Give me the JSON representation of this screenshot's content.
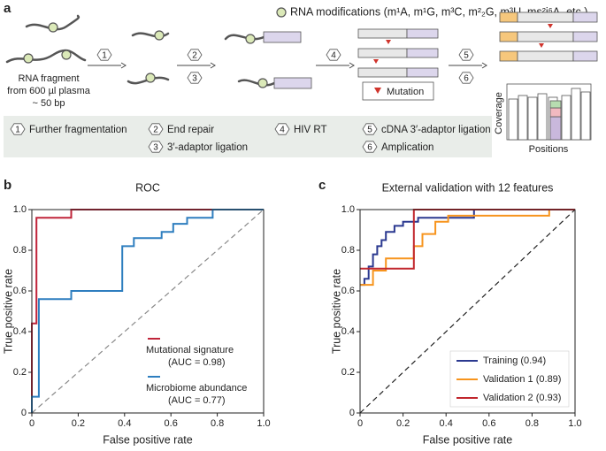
{
  "panel_a": {
    "label": "a",
    "legend": "RNA modifications (m¹A, m¹G, m³C, m²₂G, m³U, ms²i⁶A, etc.)",
    "source": [
      "RNA fragment",
      "from 600 µl plasma",
      "~ 50 bp"
    ],
    "mutation": "Mutation",
    "coverage": "Coverage",
    "positions": "Positions",
    "steps": [
      {
        "number": "1",
        "label": "Further fragmentation"
      },
      {
        "number": "2",
        "label": "End repair"
      },
      {
        "number": "3",
        "label": "3′-adaptor ligation"
      },
      {
        "number": "4",
        "label": "HIV RT"
      },
      {
        "number": "5",
        "label": "cDNA 3′-adaptor ligation"
      },
      {
        "number": "6",
        "label": "Amplication"
      }
    ]
  },
  "chart_data": [
    {
      "type": "line",
      "panel": "b",
      "title": "ROC",
      "xlabel": "False positive rate",
      "ylabel": "True positive rate",
      "xlim": [
        0,
        1
      ],
      "ylim": [
        0,
        1
      ],
      "xticks": [
        0,
        0.2,
        0.4,
        0.6,
        0.8,
        {
          "value": 1,
          "label": "1.0"
        }
      ],
      "yticks": [
        0,
        0.2,
        0.4,
        0.6,
        0.8,
        {
          "value": 1,
          "label": "1.0"
        }
      ],
      "series": [
        {
          "name": "Mutational signature",
          "auc": "(AUC = 0.98)",
          "color": "#c0243a",
          "x": [
            0,
            0,
            0.02,
            0.02,
            0.17,
            0.17,
            1
          ],
          "values": [
            0,
            0.44,
            0.44,
            0.96,
            0.96,
            1,
            1
          ]
        },
        {
          "name": "Microbiome abundance",
          "auc": "(AUC = 0.77)",
          "color": "#2e7ebf",
          "x": [
            0,
            0,
            0.03,
            0.03,
            0.17,
            0.17,
            0.39,
            0.39,
            0.44,
            0.44,
            0.56,
            0.56,
            0.61,
            0.61,
            0.67,
            0.67,
            0.78,
            0.78,
            1
          ],
          "values": [
            0,
            0.08,
            0.08,
            0.56,
            0.56,
            0.6,
            0.6,
            0.82,
            0.82,
            0.86,
            0.86,
            0.89,
            0.89,
            0.93,
            0.93,
            0.96,
            0.96,
            1,
            1
          ]
        }
      ]
    },
    {
      "type": "line",
      "panel": "c",
      "title": "External validation with 12 features",
      "xlabel": "False positive rate",
      "ylabel": "True positive rate",
      "xlim": [
        0,
        1
      ],
      "ylim": [
        0,
        1
      ],
      "xticks": [
        0,
        0.2,
        0.4,
        0.6,
        0.8,
        {
          "value": 1,
          "label": "1.0"
        }
      ],
      "yticks": [
        0,
        0.2,
        0.4,
        0.6,
        0.8,
        {
          "value": 1,
          "label": "1.0"
        }
      ],
      "series": [
        {
          "name": "Training (0.94)",
          "color": "#2b3990",
          "x": [
            0,
            0.02,
            0.02,
            0.04,
            0.04,
            0.06,
            0.06,
            0.08,
            0.08,
            0.1,
            0.1,
            0.12,
            0.12,
            0.16,
            0.16,
            0.2,
            0.2,
            0.27,
            0.27,
            0.53,
            0.53,
            1
          ],
          "values": [
            0.63,
            0.63,
            0.66,
            0.66,
            0.72,
            0.72,
            0.78,
            0.78,
            0.82,
            0.82,
            0.85,
            0.85,
            0.89,
            0.89,
            0.92,
            0.92,
            0.94,
            0.94,
            0.96,
            0.96,
            1,
            1
          ]
        },
        {
          "name": "Validation 1 (0.89)",
          "color": "#f7941d",
          "x": [
            0,
            0.06,
            0.06,
            0.12,
            0.12,
            0.25,
            0.25,
            0.29,
            0.29,
            0.35,
            0.35,
            0.41,
            0.41,
            0.88,
            0.88,
            1
          ],
          "values": [
            0.63,
            0.63,
            0.7,
            0.7,
            0.76,
            0.76,
            0.82,
            0.82,
            0.88,
            0.88,
            0.94,
            0.94,
            0.97,
            0.97,
            1,
            1
          ]
        },
        {
          "name": "Validation 2 (0.93)",
          "color": "#c1272d",
          "x": [
            0,
            0.25,
            0.25,
            1
          ],
          "values": [
            0.71,
            0.71,
            1,
            1
          ]
        }
      ]
    }
  ]
}
